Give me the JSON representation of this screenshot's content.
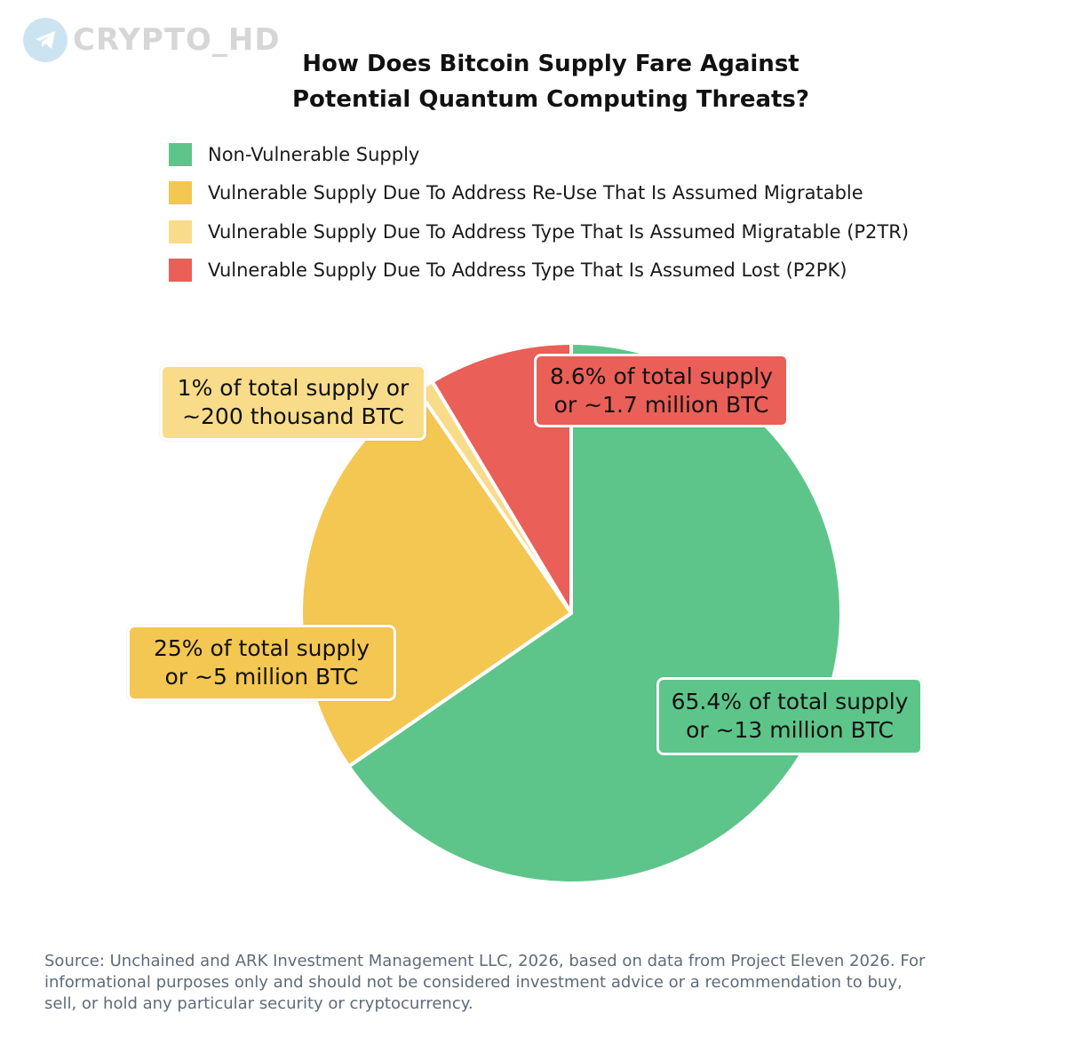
{
  "watermark": {
    "text": "CRYPTO_HD",
    "icon": "telegram-icon"
  },
  "colors": {
    "green": "#5ec58a",
    "yellow": "#f4c652",
    "light_yellow": "#f8dc8a",
    "red": "#ea5f57"
  },
  "chart_data": {
    "type": "pie",
    "title_lines": [
      "How Does Bitcoin Supply Fare Against",
      "Potential Quantum Computing Threats?"
    ],
    "legend_placement": "top",
    "slices": [
      {
        "label": "Non-Vulnerable Supply",
        "value": 65.4,
        "color": "#5ec58a",
        "annotation_lines": [
          "65.4% of total supply",
          "or ~13 million BTC"
        ]
      },
      {
        "label": "Vulnerable Supply Due To Address Re-Use That Is Assumed Migratable",
        "value": 25,
        "color": "#f4c652",
        "annotation_lines": [
          "25% of total supply",
          "or ~5 million BTC"
        ]
      },
      {
        "label": "Vulnerable Supply Due To Address Type That Is Assumed Migratable (P2TR)",
        "value": 1,
        "color": "#f8dc8a",
        "annotation_lines": [
          "1% of total supply or",
          "~200 thousand BTC"
        ]
      },
      {
        "label": "Vulnerable Supply Due To Address Type That Is Assumed Lost (P2PK)",
        "value": 8.6,
        "color": "#ea5f57",
        "annotation_lines": [
          "8.6% of total supply",
          "or ~1.7 million BTC"
        ]
      }
    ]
  },
  "footer": {
    "lines": [
      "Source: Unchained and ARK Investment Management LLC, 2026, based on data from Project Eleven 2026. For",
      "informational purposes only and should not be considered investment advice or a recommendation to buy,",
      "sell, or hold any particular security or cryptocurrency."
    ]
  }
}
